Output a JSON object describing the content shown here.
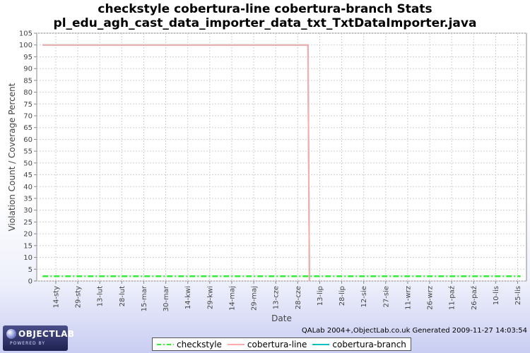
{
  "chart_data": {
    "type": "line",
    "title": "checkstyle cobertura-line cobertura-branch  Stats",
    "subtitle": "pl_edu_agh_cast_data_importer_data_txt_TxtDataImporter.java",
    "xlabel": "Date",
    "ylabel": "Violation Count / Coverage Percent",
    "ylim": [
      0,
      105
    ],
    "yticks": [
      0,
      5,
      10,
      15,
      20,
      25,
      30,
      35,
      40,
      45,
      50,
      55,
      60,
      65,
      70,
      75,
      80,
      85,
      90,
      95,
      100,
      105
    ],
    "xtick_labels": [
      "14-sty",
      "29-sty",
      "13-lut",
      "28-lut",
      "15-mar",
      "30-mar",
      "14-kwi",
      "29-kwi",
      "14-maj",
      "29-maj",
      "13-cze",
      "28-cze",
      "13-lip",
      "28-lip",
      "12-sie",
      "27-sie",
      "11-wrz",
      "26-wrz",
      "11-paź",
      "26-paź",
      "10-lis",
      "25-lis"
    ],
    "grid": true,
    "legend_position": "bottom",
    "series": [
      {
        "name": "checkstyle",
        "color": "#33ee33",
        "style": "dash-dot",
        "points": [
          [
            "2009-01-05",
            2
          ],
          [
            "2009-11-27",
            2
          ]
        ]
      },
      {
        "name": "cobertura-line",
        "color": "#ffaaaa",
        "style": "solid",
        "points": [
          [
            "2009-01-05",
            100
          ],
          [
            "2009-07-05",
            100
          ],
          [
            "2009-07-06",
            0
          ]
        ]
      },
      {
        "name": "cobertura-branch",
        "color": "#00c0c0",
        "style": "solid",
        "points": [
          [
            "2009-01-05",
            100
          ],
          [
            "2009-07-05",
            100
          ],
          [
            "2009-07-06",
            0
          ]
        ]
      }
    ]
  },
  "footer": {
    "logo_text": "OBJECTLAB",
    "logo_sub": "POWERED BY",
    "generated": "QALab 2004+,ObjectLab.co.uk Generated 2009-11-27 14:03:54"
  }
}
